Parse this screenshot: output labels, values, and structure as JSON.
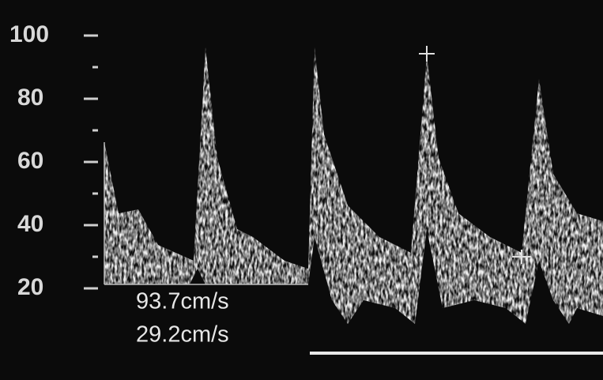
{
  "scale": {
    "labels": [
      "100",
      "80",
      "60",
      "40",
      "20"
    ]
  },
  "measurements": [
    "93.7cm/s",
    "29.2cm/s"
  ]
}
